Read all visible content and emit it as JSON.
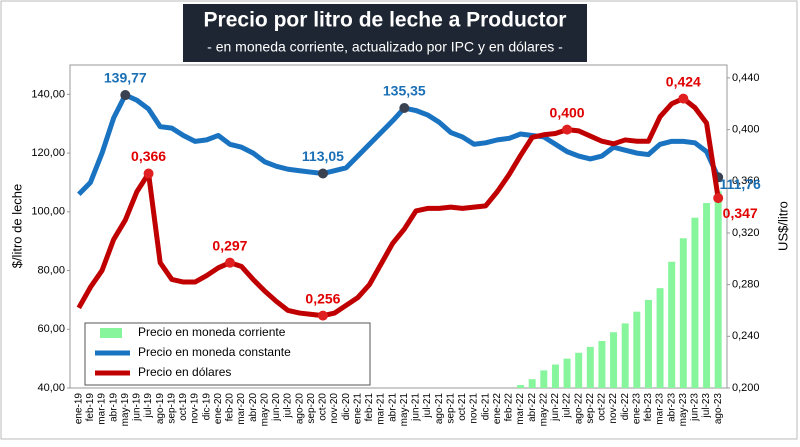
{
  "chart_data": {
    "type": "combo",
    "title": "Precio por litro de leche a Productor",
    "subtitle": "- en moneda corriente, actualizado por IPC y en dólares -",
    "y_label": "$/litro de leche",
    "y2_label": "US$/litro",
    "categories": [
      "ene-19",
      "feb-19",
      "mar-19",
      "abr-19",
      "may-19",
      "jun-19",
      "jul-19",
      "ago-19",
      "sep-19",
      "oct-19",
      "nov-19",
      "dic-19",
      "ene-20",
      "feb-20",
      "mar-20",
      "abr-20",
      "may-20",
      "jun-20",
      "jul-20",
      "ago-20",
      "sep-20",
      "oct-20",
      "nov-20",
      "dic-20",
      "ene-21",
      "feb-21",
      "mar-21",
      "abr-21",
      "may-21",
      "jun-21",
      "jul-21",
      "ago-21",
      "sep-21",
      "oct-21",
      "nov-21",
      "dic-21",
      "ene-22",
      "feb-22",
      "mar-22",
      "abr-22",
      "may-22",
      "jun-22",
      "jul-22",
      "ago-22",
      "sep-22",
      "oct-22",
      "nov-22",
      "dic-22",
      "ene-23",
      "feb-23",
      "mar-23",
      "abr-23",
      "may-23",
      "jun-23",
      "jul-23",
      "ago-23"
    ],
    "ylim": [
      40,
      150
    ],
    "yticks": [
      {
        "value": 40,
        "label": "40,00"
      },
      {
        "value": 60,
        "label": "60,00"
      },
      {
        "value": 80,
        "label": "80,00"
      },
      {
        "value": 100,
        "label": "100,00"
      },
      {
        "value": 120,
        "label": "120,00"
      },
      {
        "value": 140,
        "label": "140,00"
      }
    ],
    "y2lim": [
      0.2,
      0.45
    ],
    "y2ticks": [
      {
        "value": 0.2,
        "label": "0,200"
      },
      {
        "value": 0.24,
        "label": "0,240"
      },
      {
        "value": 0.28,
        "label": "0,280"
      },
      {
        "value": 0.32,
        "label": "0,320"
      },
      {
        "value": 0.36,
        "label": "0,360"
      },
      {
        "value": 0.4,
        "label": "0,400"
      },
      {
        "value": 0.44,
        "label": "0,440"
      }
    ],
    "grid": false,
    "legend": "lower left",
    "series": [
      {
        "name": "Precio en moneda corriente",
        "type": "bar",
        "color": "#86f59b",
        "values": [
          null,
          null,
          null,
          null,
          null,
          null,
          null,
          null,
          null,
          null,
          null,
          null,
          null,
          null,
          null,
          null,
          null,
          null,
          null,
          null,
          null,
          null,
          null,
          null,
          null,
          null,
          null,
          null,
          null,
          null,
          null,
          null,
          null,
          null,
          null,
          null,
          null,
          null,
          41,
          43,
          46,
          48,
          50,
          52,
          54,
          56,
          59,
          62,
          66,
          70,
          74,
          83,
          91,
          98,
          103,
          107
        ]
      },
      {
        "name": "Precio en moneda constante",
        "type": "line",
        "color": "#1a73c0",
        "label_color": "#1a6fb5",
        "values": [
          106,
          110,
          120,
          132,
          139.77,
          138,
          135,
          129,
          128.5,
          126,
          124,
          124.5,
          126,
          123,
          122,
          120,
          117,
          115.5,
          114.5,
          114,
          113.5,
          113.05,
          114,
          115,
          119,
          123,
          127,
          131,
          135.35,
          134.5,
          133,
          130.5,
          127,
          125.5,
          123,
          123.5,
          124.5,
          125,
          126.5,
          126,
          125.5,
          123,
          120.5,
          119,
          118,
          119,
          122,
          121,
          120,
          119.5,
          123,
          124,
          124,
          123.5,
          120.5,
          111.76
        ],
        "value_labels": [
          null,
          null,
          null,
          null,
          "139,77",
          null,
          null,
          null,
          null,
          null,
          null,
          null,
          null,
          null,
          null,
          null,
          null,
          null,
          null,
          null,
          null,
          "113,05",
          null,
          null,
          null,
          null,
          null,
          null,
          "135,35",
          null,
          null,
          null,
          null,
          null,
          null,
          null,
          null,
          null,
          null,
          null,
          null,
          null,
          null,
          null,
          null,
          null,
          null,
          null,
          null,
          null,
          null,
          null,
          null,
          null,
          null,
          "111,76"
        ]
      },
      {
        "name": "Precio en dólares",
        "type": "line",
        "axis": "y2",
        "color": "#c00000",
        "label_color": "#e00000",
        "values": [
          0.262,
          0.278,
          0.291,
          0.315,
          0.33,
          0.352,
          0.366,
          0.297,
          0.284,
          0.282,
          0.282,
          0.287,
          0.293,
          0.297,
          0.294,
          0.284,
          0.275,
          0.267,
          0.26,
          0.258,
          0.257,
          0.256,
          0.258,
          0.264,
          0.27,
          0.28,
          0.296,
          0.312,
          0.323,
          0.337,
          0.339,
          0.339,
          0.34,
          0.339,
          0.34,
          0.341,
          0.352,
          0.365,
          0.38,
          0.394,
          0.396,
          0.397,
          0.4,
          0.399,
          0.395,
          0.391,
          0.389,
          0.392,
          0.391,
          0.391,
          0.41,
          0.42,
          0.424,
          0.417,
          0.405,
          0.347
        ],
        "value_labels": [
          null,
          null,
          null,
          null,
          null,
          null,
          "0,366",
          null,
          null,
          null,
          null,
          null,
          null,
          "0,297",
          null,
          null,
          null,
          null,
          null,
          null,
          null,
          "0,256",
          null,
          null,
          null,
          null,
          null,
          null,
          null,
          null,
          null,
          null,
          null,
          null,
          null,
          null,
          null,
          null,
          null,
          null,
          null,
          null,
          "0,400",
          null,
          null,
          null,
          null,
          null,
          null,
          null,
          null,
          null,
          "0,424",
          null,
          null,
          "0,347"
        ]
      }
    ]
  }
}
